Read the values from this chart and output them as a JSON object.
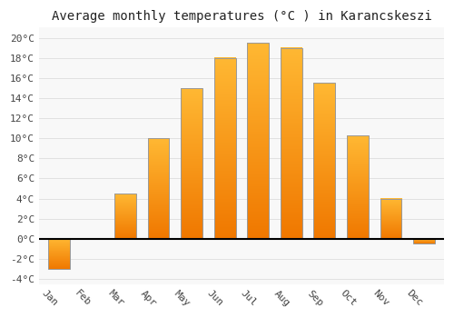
{
  "months": [
    "Jan",
    "Feb",
    "Mar",
    "Apr",
    "May",
    "Jun",
    "Jul",
    "Aug",
    "Sep",
    "Oct",
    "Nov",
    "Dec"
  ],
  "values": [
    -3.0,
    0.0,
    4.5,
    10.0,
    15.0,
    18.0,
    19.5,
    19.0,
    15.5,
    10.3,
    4.0,
    -0.5
  ],
  "bar_color_top": "#FFB833",
  "bar_color_bottom": "#F07800",
  "bar_edge_color": "#999999",
  "title": "Average monthly temperatures (°C ) in Karancskeszi",
  "yticks": [
    -4,
    -2,
    0,
    2,
    4,
    6,
    8,
    10,
    12,
    14,
    16,
    18,
    20
  ],
  "ylim": [
    -4.5,
    21.0
  ],
  "background_color": "#ffffff",
  "plot_bg_color": "#f8f8f8",
  "grid_color": "#dddddd",
  "title_fontsize": 10,
  "tick_fontsize": 8,
  "zero_line_color": "#000000",
  "label_rotation": 315
}
